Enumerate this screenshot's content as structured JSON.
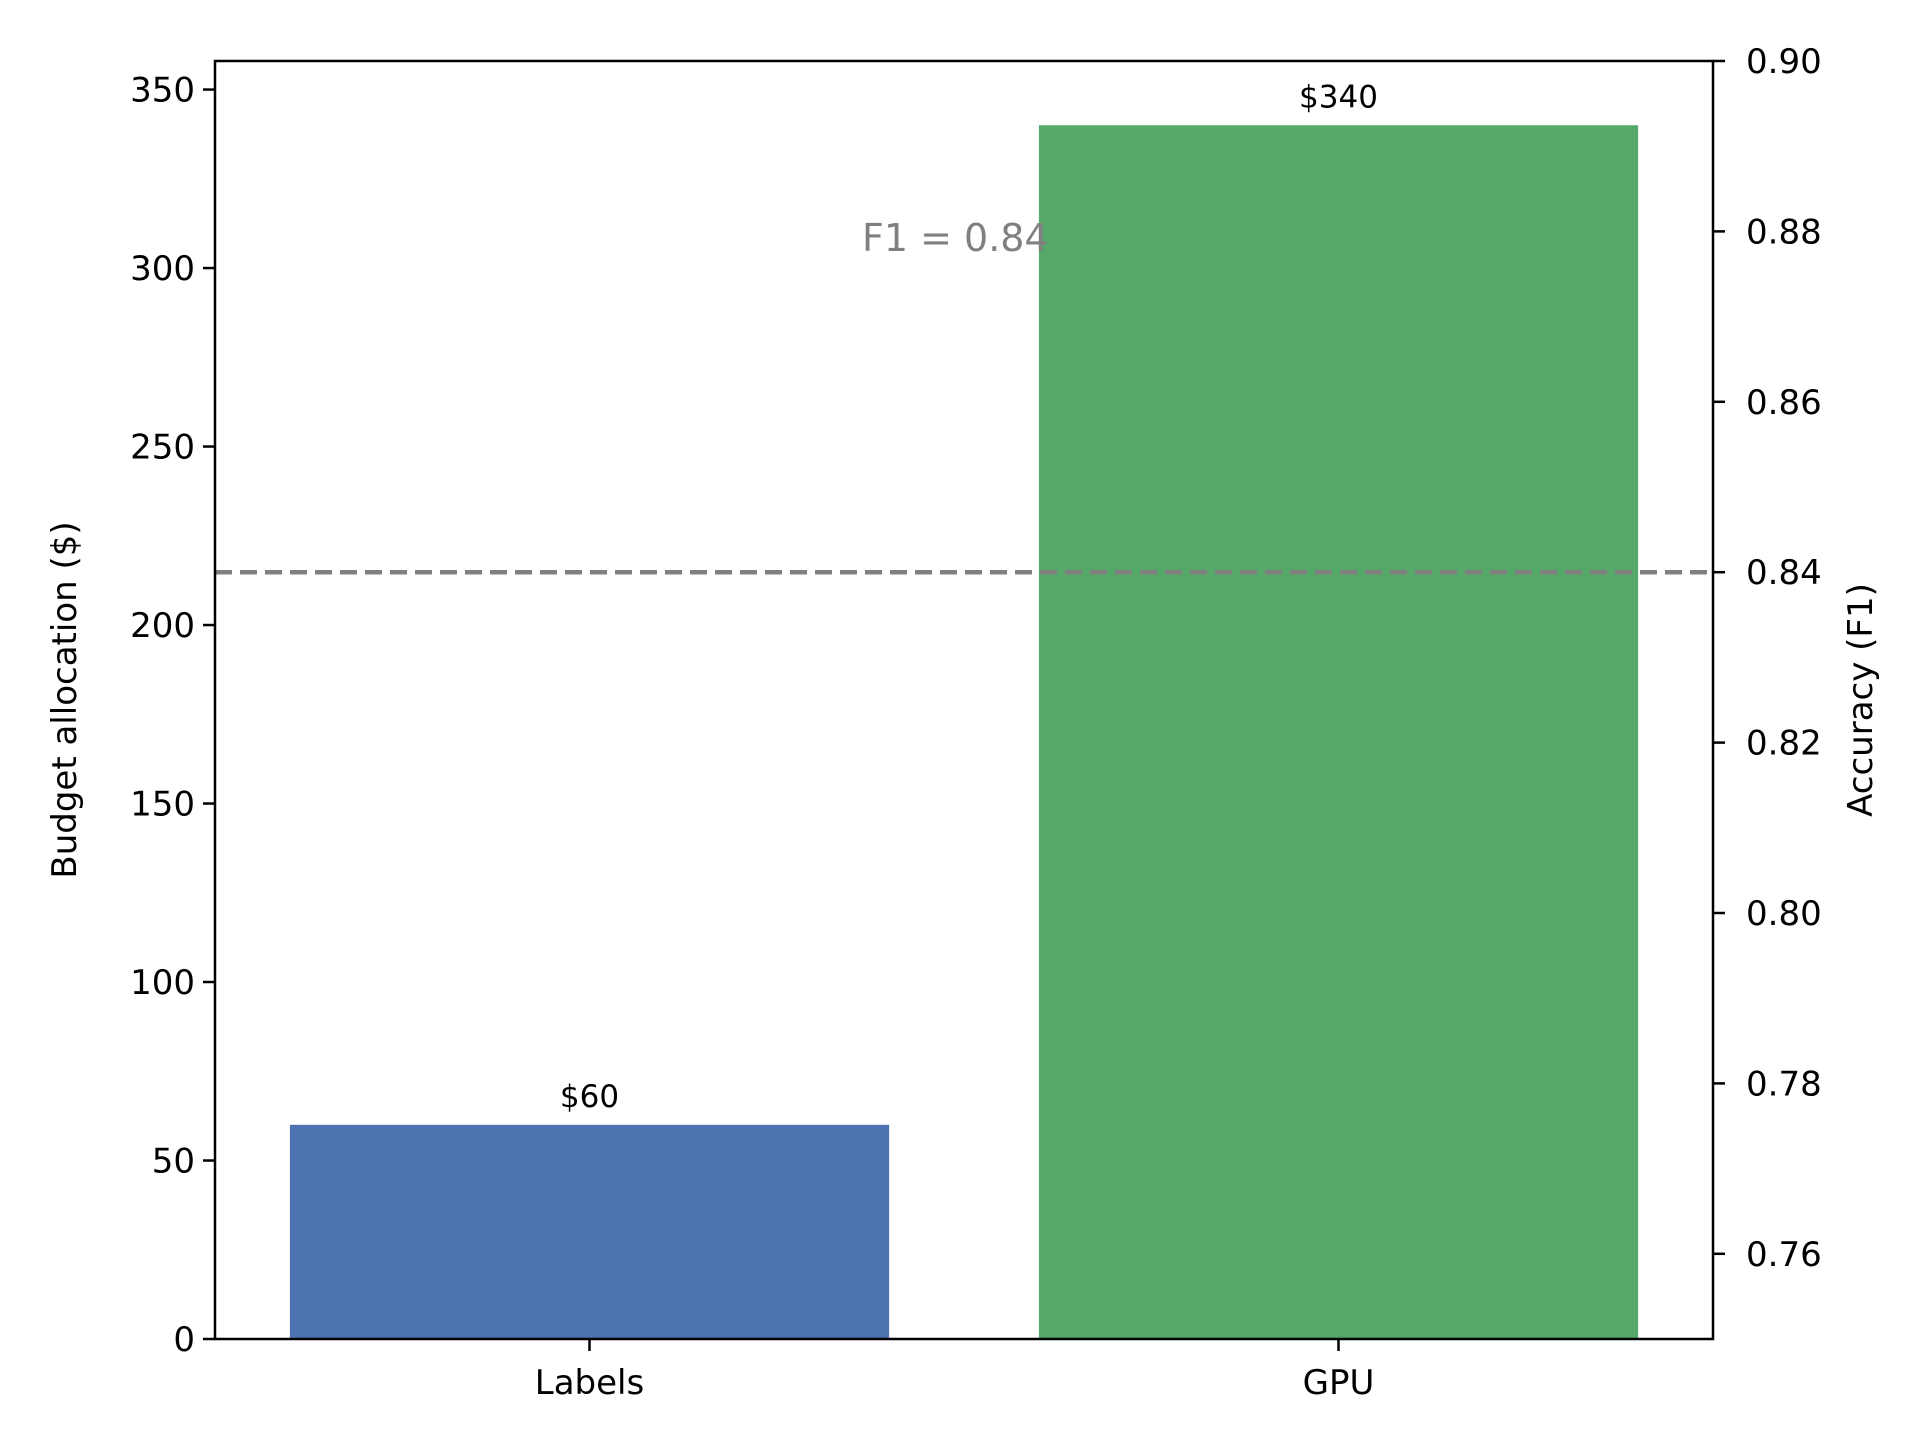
{
  "chart_data": {
    "type": "bar",
    "categories": [
      "Labels",
      "GPU"
    ],
    "values": [
      60,
      340
    ],
    "bar_labels": [
      "$60",
      "$340"
    ],
    "colors": {
      "Labels": "#4c72b0",
      "GPU": "#55a868",
      "reference": "#808080"
    },
    "ylabel": "Budget allocation ($)",
    "ylim": [
      0,
      358
    ],
    "yticks": [
      0,
      50,
      100,
      150,
      200,
      250,
      300,
      350
    ],
    "y2label": "Accuracy (F1)",
    "y2lim": [
      0.75,
      0.9
    ],
    "y2ticks": [
      "0.76",
      "0.78",
      "0.80",
      "0.82",
      "0.84",
      "0.86",
      "0.88",
      "0.90"
    ],
    "reference_line": {
      "axis": "y2",
      "value": 0.84,
      "style": "dashed",
      "label": "F1 = 0.84"
    },
    "grid": false,
    "legend": "none"
  }
}
